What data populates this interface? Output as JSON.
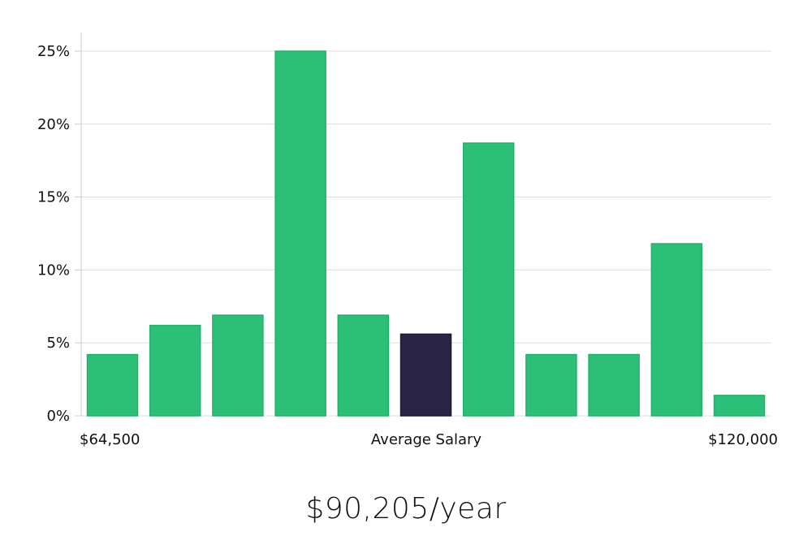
{
  "chart_data": {
    "type": "bar",
    "x_axis_labels": {
      "left": "$64,500",
      "center": "Average Salary",
      "right": "$120,000"
    },
    "y_ticks": [
      "0%",
      "5%",
      "10%",
      "15%",
      "20%",
      "25%"
    ],
    "ylim": [
      0,
      25
    ],
    "grid": true,
    "values": [
      4.2,
      6.2,
      6.9,
      25.0,
      6.9,
      5.6,
      18.7,
      4.2,
      4.2,
      11.8,
      1.4
    ],
    "highlight_index": 5,
    "colors": {
      "bar": "#2bbf78",
      "bar_border": "#25b06c",
      "highlight": "#2a2547",
      "highlight_border": "#1b1838",
      "grid": "#dddddd",
      "axis": "#cccccc"
    }
  },
  "salary_label": "$90,205/year"
}
